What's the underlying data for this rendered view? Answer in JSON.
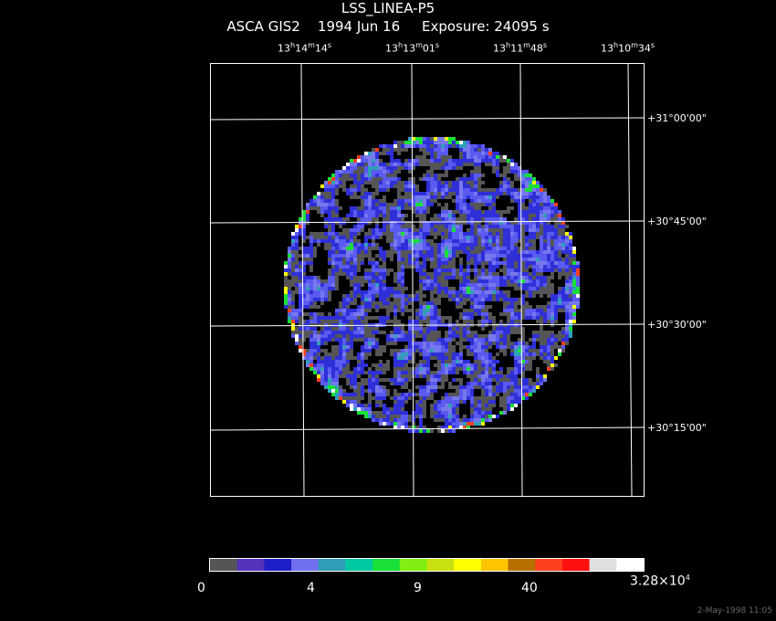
{
  "header": {
    "title": "LSS_LINEA-P5",
    "subtitle_mission": "ASCA GIS2",
    "subtitle_date": "1994 Jun 16",
    "subtitle_exposure": "Exposure: 24095 s"
  },
  "ra_ticks": [
    {
      "h": "13",
      "m": "14",
      "s": "14"
    },
    {
      "h": "13",
      "m": "13",
      "s": "01"
    },
    {
      "h": "13",
      "m": "11",
      "s": "48"
    },
    {
      "h": "13",
      "m": "10",
      "s": "34"
    }
  ],
  "dec_ticks": [
    "+31°00'00\"",
    "+30°45'00\"",
    "+30°30'00\"",
    "+30°15'00\""
  ],
  "colorbar": {
    "labels": [
      "0",
      "4",
      "9",
      "40"
    ],
    "max_mantissa": "3.28×10",
    "max_exponent": "4",
    "colors": [
      "#555555",
      "#5533bb",
      "#1f1fc8",
      "#7070ee",
      "#2f9fb8",
      "#00c8a0",
      "#18e038",
      "#80ee10",
      "#c8e010",
      "#ffff00",
      "#ffc400",
      "#b87000",
      "#ff4020",
      "#ff1010",
      "#e0e0e0",
      "#ffffff"
    ]
  },
  "timestamp": "2-May-1998 11:05"
}
